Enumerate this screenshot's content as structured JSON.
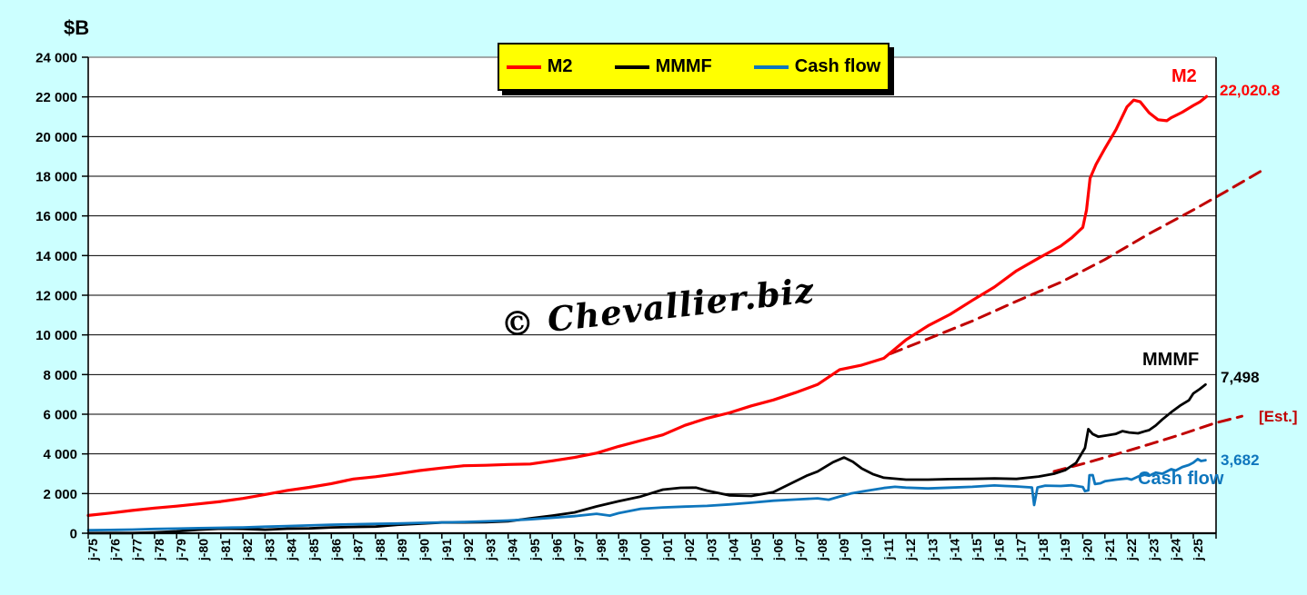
{
  "background_color": "#CCFFFF",
  "plot_background": "#FFFFFF",
  "unit_label": "$B",
  "watermark": "© Chevallier.biz",
  "legend": {
    "position": "top-center",
    "background": "#FFFF00",
    "items": [
      {
        "label": "M2",
        "color": "#FF0000"
      },
      {
        "label": "MMMF",
        "color": "#000000"
      },
      {
        "label": "Cash flow",
        "color": "#0E76BD"
      }
    ]
  },
  "annotations": {
    "m2_series_label": "M2",
    "m2_end_value": "22,020.8",
    "mmmf_series_label": "MMMF",
    "mmmf_end_value": "7,498",
    "cashflow_series_label": "Cash flow",
    "cashflow_end_value": "3,682",
    "estimate_label": "[Est.]"
  },
  "chart_data": {
    "type": "line",
    "title": "",
    "xlabel": "",
    "ylabel": "$B",
    "ylim": [
      0,
      24000
    ],
    "ytick_step": 2000,
    "ytick_labels": [
      "0",
      "2 000",
      "4 000",
      "6 000",
      "8 000",
      "10 000",
      "12 000",
      "14 000",
      "16 000",
      "18 000",
      "20 000",
      "22 000",
      "24 000"
    ],
    "x_is_years": true,
    "xlim": [
      1975,
      2025.7
    ],
    "xtick_labels": [
      "j-75",
      "j-76",
      "j-77",
      "j-78",
      "j-79",
      "j-80",
      "j-81",
      "j-82",
      "j-83",
      "j-84",
      "j-85",
      "j-86",
      "j-87",
      "j-88",
      "j-89",
      "j-90",
      "j-91",
      "j-92",
      "j-93",
      "j-94",
      "j-95",
      "j-96",
      "j-97",
      "j-98",
      "j-99",
      "j-00",
      "j-01",
      "j-02",
      "j-03",
      "j-04",
      "j-05",
      "j-06",
      "j-07",
      "j-08",
      "j-09",
      "j-10",
      "j-11",
      "j-12",
      "j-13",
      "j-14",
      "j-15",
      "j-16",
      "j-17",
      "j-18",
      "j-19",
      "j-20",
      "j-21",
      "j-22",
      "j-23",
      "j-24",
      "j-25"
    ],
    "grid": "horizontal",
    "series": [
      {
        "name": "M2",
        "color": "#FF0000",
        "style": "solid",
        "width": 3.2,
        "end_value": 22020.8,
        "x": [
          1975,
          1976,
          1977,
          1978,
          1979,
          1980,
          1981,
          1982,
          1983,
          1984,
          1985,
          1986,
          1987,
          1988,
          1989,
          1990,
          1991,
          1992,
          1993,
          1994,
          1995,
          1996,
          1997,
          1998,
          1999,
          2000,
          2001,
          2002,
          2003,
          2004,
          2005,
          2006,
          2007,
          2008,
          2009,
          2010,
          2011,
          2012,
          2013,
          2014,
          2015,
          2016,
          2017,
          2018,
          2019,
          2019.5,
          2020.0,
          2020.17,
          2020.33,
          2020.6,
          2021,
          2021.5,
          2022,
          2022.3,
          2022.6,
          2023,
          2023.4,
          2023.8,
          2024,
          2024.5,
          2025,
          2025.3,
          2025.6
        ],
        "values": [
          900,
          1015,
          1150,
          1270,
          1365,
          1480,
          1600,
          1755,
          1950,
          2155,
          2315,
          2500,
          2735,
          2850,
          2995,
          3160,
          3290,
          3405,
          3425,
          3465,
          3490,
          3650,
          3820,
          4040,
          4380,
          4670,
          4960,
          5440,
          5800,
          6070,
          6420,
          6720,
          7090,
          7500,
          8250,
          8480,
          8820,
          9750,
          10460,
          11040,
          11740,
          12410,
          13230,
          13870,
          14480,
          14900,
          15420,
          16300,
          17900,
          18600,
          19400,
          20350,
          21500,
          21840,
          21750,
          21200,
          20850,
          20800,
          20950,
          21230,
          21570,
          21750,
          22020.8
        ]
      },
      {
        "name": "MMMF",
        "color": "#000000",
        "style": "solid",
        "width": 2.8,
        "end_value": 7498,
        "x": [
          1975,
          1976,
          1977,
          1978,
          1979,
          1980,
          1981,
          1982,
          1983,
          1984,
          1985,
          1986,
          1987,
          1988,
          1989,
          1990,
          1991,
          1992,
          1993,
          1994,
          1995,
          1996,
          1997,
          1998,
          1999,
          2000,
          2001,
          2001.8,
          2002.5,
          2003,
          2004,
          2005,
          2006,
          2007,
          2007.5,
          2008,
          2008.7,
          2009.2,
          2009.6,
          2010,
          2010.5,
          2011,
          2012,
          2013,
          2014,
          2015,
          2016,
          2017,
          2018,
          2018.7,
          2019.2,
          2019.7,
          2020.1,
          2020.25,
          2020.45,
          2020.7,
          2021,
          2021.5,
          2021.8,
          2022.1,
          2022.5,
          2022.8,
          2023,
          2023.3,
          2023.6,
          2024,
          2024.4,
          2024.8,
          2025,
          2025.3,
          2025.55
        ],
        "values": [
          5,
          8,
          10,
          40,
          95,
          180,
          230,
          220,
          180,
          230,
          242,
          292,
          315,
          335,
          425,
          480,
          540,
          545,
          560,
          600,
          745,
          890,
          1050,
          1350,
          1610,
          1850,
          2200,
          2290,
          2300,
          2150,
          1910,
          1880,
          2070,
          2620,
          2900,
          3110,
          3580,
          3820,
          3600,
          3260,
          2980,
          2800,
          2700,
          2700,
          2730,
          2740,
          2760,
          2740,
          2860,
          3000,
          3180,
          3550,
          4300,
          5250,
          5000,
          4870,
          4920,
          5010,
          5150,
          5080,
          5040,
          5140,
          5200,
          5430,
          5740,
          6100,
          6430,
          6700,
          7050,
          7280,
          7498
        ]
      },
      {
        "name": "Cash flow",
        "color": "#0E76BD",
        "style": "solid",
        "width": 2.8,
        "end_value": 3682,
        "x": [
          1975,
          1976,
          1977,
          1978,
          1979,
          1980,
          1981,
          1982,
          1983,
          1984,
          1985,
          1986,
          1987,
          1988,
          1989,
          1990,
          1991,
          1992,
          1993,
          1994,
          1995,
          1996,
          1997,
          1998,
          1998.6,
          1999,
          2000,
          2001,
          2002,
          2003,
          2004,
          2005,
          2006,
          2007,
          2008,
          2008.5,
          2009,
          2009.5,
          2010,
          2011,
          2011.5,
          2012,
          2013,
          2014,
          2015,
          2016,
          2016.5,
          2017,
          2017.7,
          2017.8,
          2017.95,
          2018.3,
          2019,
          2019.5,
          2020,
          2020.1,
          2020.25,
          2020.3,
          2020.45,
          2020.55,
          2020.8,
          2021,
          2021.5,
          2022,
          2022.2,
          2022.5,
          2022.8,
          2023,
          2023.3,
          2023.6,
          2024,
          2024.2,
          2024.5,
          2024.8,
          2025,
          2025.2,
          2025.35,
          2025.55
        ],
        "values": [
          150,
          165,
          185,
          215,
          235,
          255,
          275,
          295,
          330,
          360,
          395,
          430,
          450,
          470,
          490,
          520,
          545,
          570,
          600,
          640,
          700,
          780,
          860,
          980,
          890,
          1010,
          1230,
          1300,
          1340,
          1380,
          1450,
          1540,
          1640,
          1700,
          1760,
          1690,
          1850,
          2000,
          2100,
          2280,
          2340,
          2300,
          2260,
          2300,
          2340,
          2410,
          2380,
          2360,
          2310,
          1420,
          2310,
          2400,
          2380,
          2420,
          2330,
          2120,
          2160,
          2920,
          2930,
          2480,
          2520,
          2620,
          2700,
          2760,
          2700,
          2860,
          2950,
          2900,
          3060,
          3000,
          3230,
          3160,
          3340,
          3440,
          3560,
          3740,
          3640,
          3682
        ]
      },
      {
        "name": "M2 estimate",
        "color": "#C00000",
        "style": "dashed",
        "width": 3,
        "x": [
          2011.3,
          2013,
          2015,
          2017,
          2019,
          2021,
          2023,
          2025,
          2026.5,
          2028.2
        ],
        "values": [
          9050,
          9800,
          10700,
          11700,
          12650,
          13800,
          15100,
          16300,
          17250,
          18350
        ]
      },
      {
        "name": "Cash flow estimate [Est.]",
        "color": "#C00000",
        "style": "dashed",
        "width": 3,
        "x": [
          2018.7,
          2020,
          2021.5,
          2023,
          2024.5,
          2026,
          2027.2
        ],
        "values": [
          3120,
          3500,
          3980,
          4480,
          5000,
          5560,
          5900
        ]
      }
    ]
  }
}
